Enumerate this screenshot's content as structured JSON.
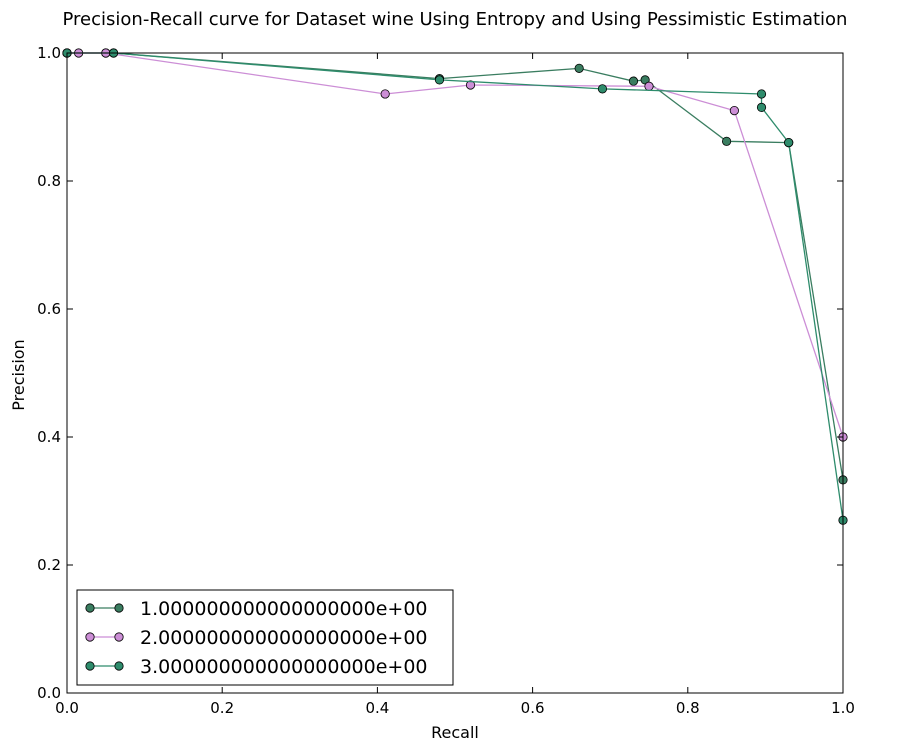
{
  "chart_data": {
    "type": "line",
    "title": "Precision-Recall curve for Dataset wine Using Entropy and Using Pessimistic Estimation",
    "xlabel": "Recall",
    "ylabel": "Precision",
    "xlim": [
      0.0,
      1.0
    ],
    "ylim": [
      0.0,
      1.0
    ],
    "xticks": [
      "0.0",
      "0.2",
      "0.4",
      "0.6",
      "0.8",
      "1.0"
    ],
    "yticks": [
      "0.0",
      "0.2",
      "0.4",
      "0.6",
      "0.8",
      "1.0"
    ],
    "grid": false,
    "legend_position": "bottom-left",
    "series": [
      {
        "name": "1.000000000000000000e+00",
        "color": "#3a7d60",
        "points": [
          [
            0.0,
            1.0
          ],
          [
            0.05,
            1.0
          ],
          [
            0.06,
            1.0
          ],
          [
            0.48,
            0.96
          ],
          [
            0.66,
            0.976
          ],
          [
            0.73,
            0.956
          ],
          [
            0.745,
            0.958
          ],
          [
            0.85,
            0.862
          ],
          [
            0.93,
            0.86
          ],
          [
            1.0,
            0.333
          ]
        ]
      },
      {
        "name": "2.000000000000000000e+00",
        "color": "#cc8ed6",
        "points": [
          [
            0.0,
            1.0
          ],
          [
            0.015,
            1.0
          ],
          [
            0.05,
            1.0
          ],
          [
            0.41,
            0.936
          ],
          [
            0.52,
            0.95
          ],
          [
            0.75,
            0.948
          ],
          [
            0.86,
            0.91
          ],
          [
            1.0,
            0.4
          ]
        ]
      },
      {
        "name": "3.000000000000000000e+00",
        "color": "#2e8c6c",
        "points": [
          [
            0.0,
            1.0
          ],
          [
            0.06,
            1.0
          ],
          [
            0.48,
            0.958
          ],
          [
            0.69,
            0.944
          ],
          [
            0.895,
            0.936
          ],
          [
            0.895,
            0.915
          ],
          [
            0.93,
            0.86
          ],
          [
            1.0,
            0.27
          ]
        ]
      }
    ]
  }
}
